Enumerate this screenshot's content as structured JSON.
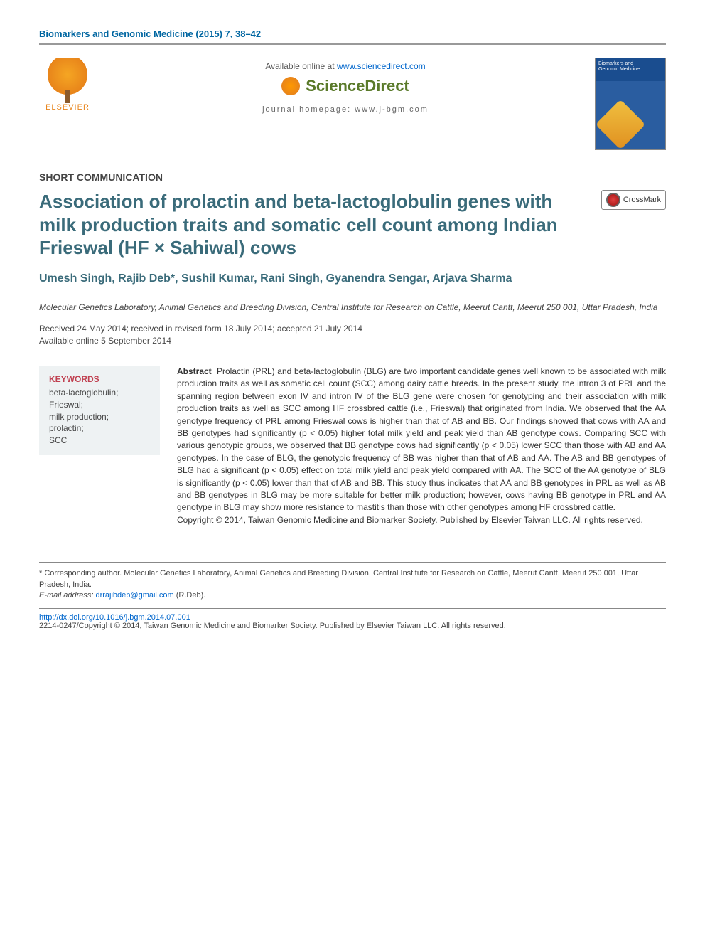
{
  "header": {
    "citation": "Biomarkers and Genomic Medicine (2015) 7, 38–42",
    "available_prefix": "Available online at ",
    "available_link": "www.sciencedirect.com",
    "sciencedirect": "ScienceDirect",
    "journal_homepage": "journal homepage: www.j-bgm.com",
    "elsevier": "ELSEVIER",
    "cover_line1": "Biomarkers and",
    "cover_line2": "Genomic Medicine"
  },
  "article": {
    "section_type": "SHORT COMMUNICATION",
    "title": "Association of prolactin and beta-lactoglobulin genes with milk production traits and somatic cell count among Indian Frieswal (HF × Sahiwal) cows",
    "crossmark": "CrossMark",
    "authors": "Umesh Singh, Rajib Deb*, Sushil Kumar, Rani Singh, Gyanendra Sengar, Arjava Sharma",
    "affiliation": "Molecular Genetics Laboratory, Animal Genetics and Breeding Division, Central Institute for Research on Cattle, Meerut Cantt, Meerut 250 001, Uttar Pradesh, India",
    "dates_line1": "Received 24 May 2014; received in revised form 18 July 2014; accepted 21 July 2014",
    "dates_line2": "Available online 5 September 2014"
  },
  "keywords": {
    "heading": "KEYWORDS",
    "items": [
      "beta-lactoglobulin;",
      "Frieswal;",
      "milk production;",
      "prolactin;",
      "SCC"
    ]
  },
  "abstract": {
    "lead": "Abstract",
    "body": "Prolactin (PRL) and beta-lactoglobulin (BLG) are two important candidate genes well known to be associated with milk production traits as well as somatic cell count (SCC) among dairy cattle breeds. In the present study, the intron 3 of PRL and the spanning region between exon IV and intron IV of the BLG gene were chosen for genotyping and their association with milk production traits as well as SCC among HF crossbred cattle (i.e., Frieswal) that originated from India. We observed that the AA genotype frequency of PRL among Frieswal cows is higher than that of AB and BB. Our findings showed that cows with AA and BB genotypes had significantly (p < 0.05) higher total milk yield and peak yield than AB genotype cows. Comparing SCC with various genotypic groups, we observed that BB genotype cows had significantly (p < 0.05) lower SCC than those with AB and AA genotypes. In the case of BLG, the genotypic frequency of BB was higher than that of AB and AA. The AB and BB genotypes of BLG had a significant (p < 0.05) effect on total milk yield and peak yield compared with AA. The SCC of the AA genotype of BLG is significantly (p < 0.05) lower than that of AB and BB. This study thus indicates that AA and BB genotypes in PRL as well as AB and BB genotypes in BLG may be more suitable for better milk production; however, cows having BB genotype in PRL and AA genotype in BLG may show more resistance to mastitis than those with other genotypes among HF crossbred cattle.",
    "copyright": "Copyright © 2014, Taiwan Genomic Medicine and Biomarker Society. Published by Elsevier Taiwan LLC. All rights reserved."
  },
  "footer": {
    "corr": "* Corresponding author. Molecular Genetics Laboratory, Animal Genetics and Breeding Division, Central Institute for Research on Cattle, Meerut Cantt, Meerut 250 001, Uttar Pradesh, India.",
    "email_label": "E-mail address: ",
    "email": "drrajibdeb@gmail.com",
    "email_suffix": " (R.Deb).",
    "doi": "http://dx.doi.org/10.1016/j.bgm.2014.07.001",
    "issn_line": "2214-0247/Copyright © 2014, Taiwan Genomic Medicine and Biomarker Society. Published by Elsevier Taiwan LLC. All rights reserved."
  },
  "colors": {
    "header_blue": "#0066a1",
    "title_teal": "#3a6b7a",
    "kw_red": "#c04050",
    "link_blue": "#0066cc",
    "sd_green": "#5a7a2a",
    "elsevier_orange": "#e8841a",
    "kw_bg": "#eef2f3"
  }
}
